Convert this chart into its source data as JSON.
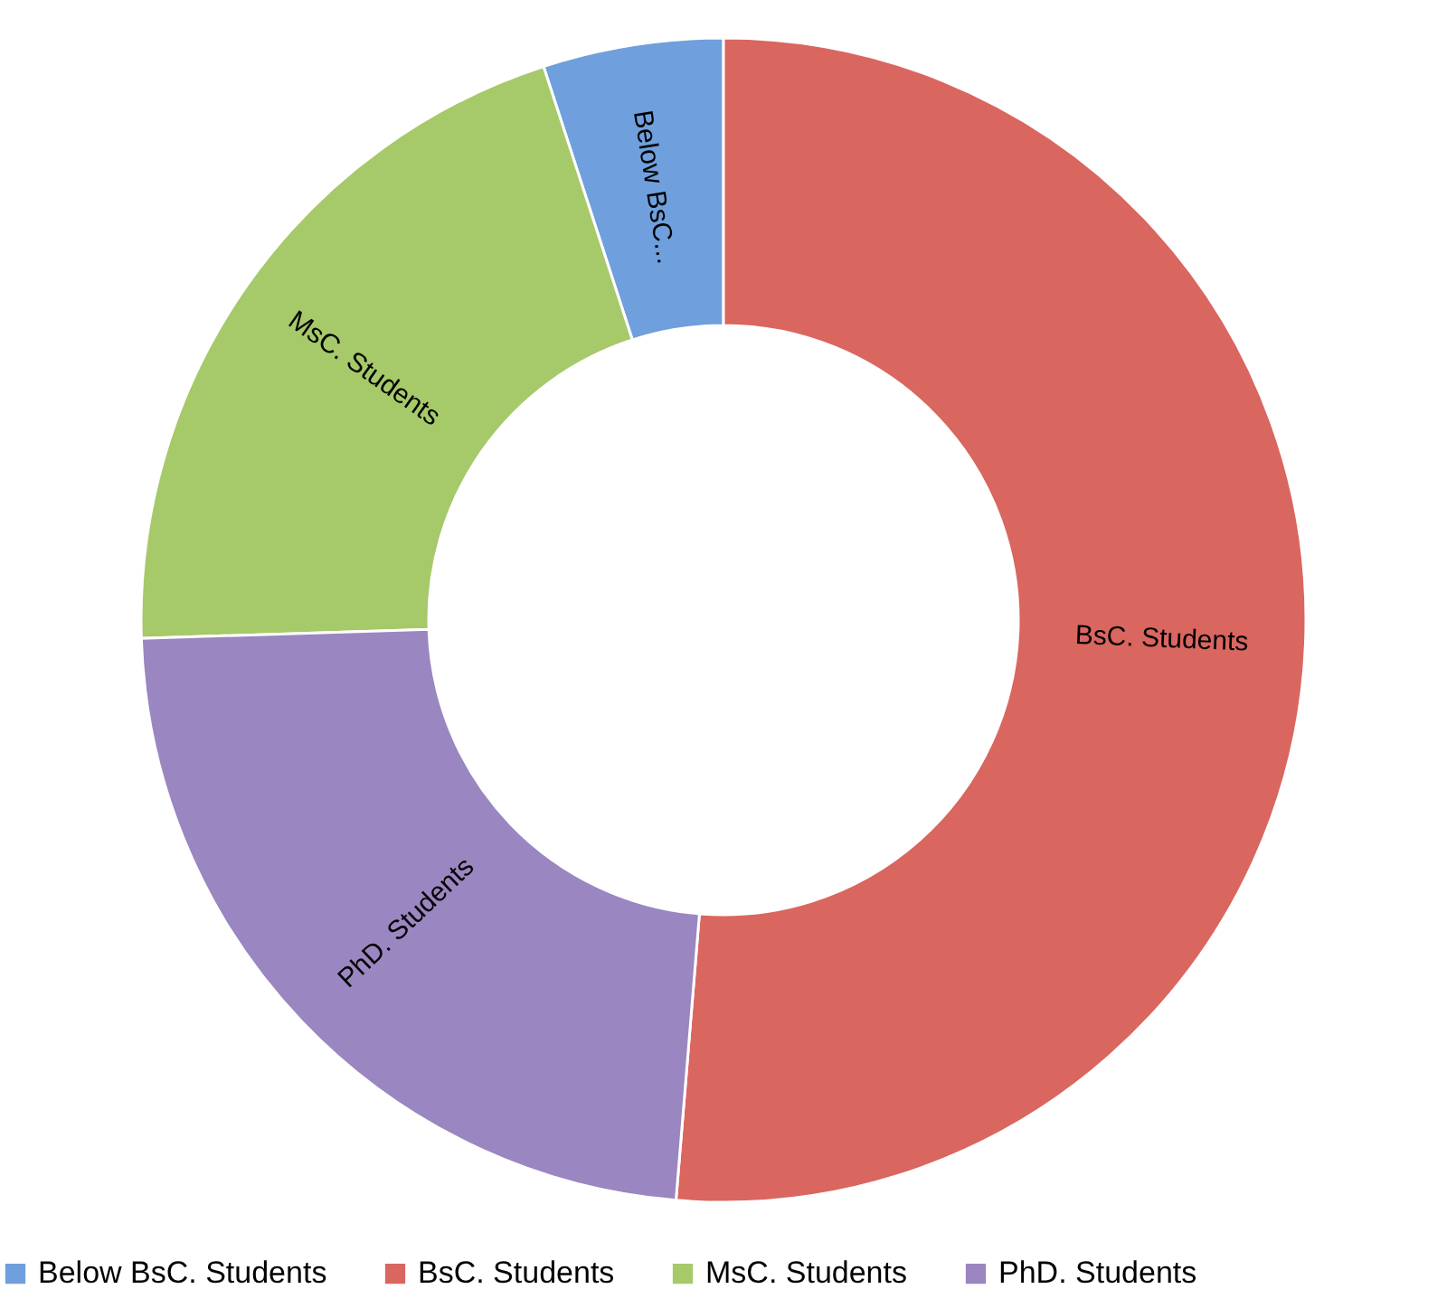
{
  "chart_data": {
    "type": "donut",
    "categories": [
      "Below BsC. Students",
      "BsC. Students",
      "MsC. Students",
      "PhD. Students"
    ],
    "values": [
      5,
      51.3,
      20.5,
      23.2
    ],
    "colors": [
      "#6f9fdc",
      "#d9665f",
      "#a6c96a",
      "#9a86c0"
    ],
    "annotations": [
      "Below BsC...",
      "BsC. Students",
      "MsC. Students",
      "PhD. Students"
    ],
    "legend": "bottom"
  }
}
